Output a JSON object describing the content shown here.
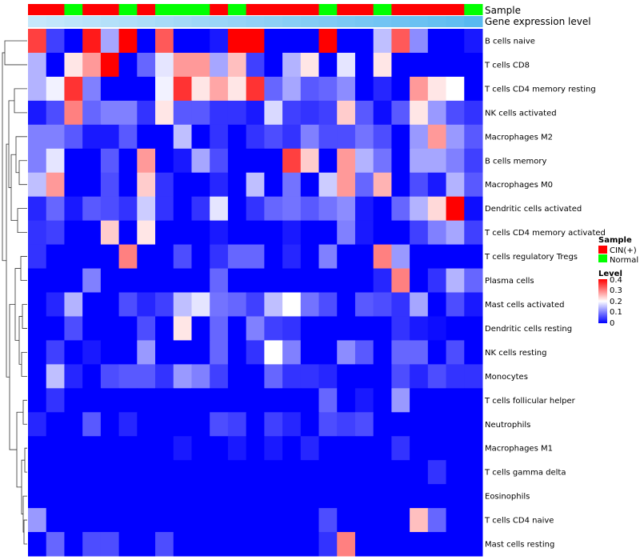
{
  "chart_data": {
    "type": "heatmap",
    "annotation_tracks": [
      {
        "name": "Sample"
      },
      {
        "name": "Gene expression level"
      }
    ],
    "sample_groups": [
      "C",
      "C",
      "N",
      "C",
      "C",
      "N",
      "C",
      "N",
      "N",
      "N",
      "C",
      "N",
      "C",
      "C",
      "C",
      "C",
      "N",
      "C",
      "C",
      "N",
      "C",
      "C",
      "C",
      "C",
      "N"
    ],
    "expression_level": [
      0.0,
      0.04,
      0.08,
      0.12,
      0.16,
      0.2,
      0.24,
      0.28,
      0.32,
      0.36,
      0.4,
      0.44,
      0.48,
      0.52,
      0.56,
      0.6,
      0.64,
      0.68,
      0.72,
      0.76,
      0.8,
      0.84,
      0.88,
      0.92,
      1.0
    ],
    "rows": [
      "B cells naive",
      "T cells CD8",
      "T cells CD4 memory resting",
      "NK cells activated",
      "Macrophages M2",
      "B cells memory",
      "Macrophages M0",
      "Dendritic cells activated",
      "T cells CD4 memory activated",
      "T cells regulatory  Tregs",
      "Plasma cells",
      "Mast cells activated",
      "Dendritic cells resting",
      "NK cells resting",
      "Monocytes",
      "T cells follicular helper",
      "Neutrophils",
      "Macrophages M1",
      "T cells gamma delta",
      "Eosinophils",
      "T cells CD4 naive",
      "Mast cells resting"
    ],
    "values": [
      [
        0.35,
        0.05,
        0,
        0.38,
        0.13,
        0.4,
        0,
        0.33,
        0,
        0,
        0.02,
        0.4,
        0.4,
        0,
        0,
        0,
        0.4,
        0,
        0,
        0.15,
        0.33,
        0.11,
        0,
        0,
        0.02
      ],
      [
        0.14,
        0,
        0.22,
        0.28,
        0.4,
        0,
        0.08,
        0.18,
        0.28,
        0.28,
        0.13,
        0.25,
        0.05,
        0,
        0.14,
        0.22,
        0,
        0.18,
        0,
        0.22,
        0,
        0,
        0,
        0,
        0
      ],
      [
        0.14,
        0.19,
        0.36,
        0.1,
        0,
        0,
        0,
        0.19,
        0.36,
        0.22,
        0.27,
        0.22,
        0.36,
        0.08,
        0.13,
        0.07,
        0.08,
        0.11,
        0,
        0.03,
        0,
        0.28,
        0.22,
        0.2,
        0
      ],
      [
        0.02,
        0.06,
        0.3,
        0.08,
        0.1,
        0.1,
        0.04,
        0.22,
        0.07,
        0.07,
        0.04,
        0.04,
        0.02,
        0.17,
        0.05,
        0.04,
        0.05,
        0.24,
        0.07,
        0.01,
        0.07,
        0.22,
        0.12,
        0.06,
        0.04
      ],
      [
        0.1,
        0.1,
        0.07,
        0.02,
        0.02,
        0.07,
        0,
        0,
        0.15,
        0,
        0.04,
        0,
        0.04,
        0.06,
        0.04,
        0.1,
        0.06,
        0.06,
        0.09,
        0.06,
        0,
        0.12,
        0.28,
        0.12,
        0.07
      ],
      [
        0.1,
        0.18,
        0,
        0,
        0.07,
        0,
        0.28,
        0,
        0.02,
        0.13,
        0.06,
        0,
        0,
        0,
        0.35,
        0.24,
        0,
        0.28,
        0.14,
        0.09,
        0,
        0.13,
        0.13,
        0.1,
        0.05
      ],
      [
        0.15,
        0.28,
        0,
        0,
        0.06,
        0,
        0.24,
        0.04,
        0,
        0,
        0.03,
        0,
        0.15,
        0,
        0.09,
        0,
        0.16,
        0.28,
        0.08,
        0.26,
        0,
        0.06,
        0.02,
        0.14,
        0.07
      ],
      [
        0.03,
        0.08,
        0.02,
        0.07,
        0.06,
        0.04,
        0.16,
        0.04,
        0,
        0.04,
        0.18,
        0,
        0.04,
        0.08,
        0.09,
        0.07,
        0.09,
        0.11,
        0.02,
        0,
        0.08,
        0.14,
        0.23,
        0.4,
        0.01
      ],
      [
        0.04,
        0.05,
        0,
        0,
        0.24,
        0,
        0.22,
        0,
        0,
        0,
        0.02,
        0,
        0,
        0,
        0.02,
        0,
        0,
        0.1,
        0.02,
        0,
        0,
        0.05,
        0.1,
        0.13,
        0.05
      ],
      [
        0.04,
        0,
        0,
        0,
        0,
        0.3,
        0,
        0,
        0.06,
        0,
        0.04,
        0.08,
        0.08,
        0,
        0.03,
        0,
        0.1,
        0,
        0,
        0.3,
        0.12,
        0,
        0,
        0,
        0
      ],
      [
        0,
        0,
        0,
        0.1,
        0,
        0,
        0,
        0,
        0,
        0,
        0.08,
        0,
        0,
        0,
        0,
        0,
        0,
        0,
        0,
        0.03,
        0.3,
        0,
        0.04,
        0.14,
        0.08
      ],
      [
        0,
        0.03,
        0.14,
        0,
        0,
        0.06,
        0.03,
        0.05,
        0.15,
        0.18,
        0.09,
        0.08,
        0.05,
        0.15,
        0.2,
        0.09,
        0.06,
        0,
        0.07,
        0.06,
        0.04,
        0.13,
        0,
        0.06,
        0.02
      ],
      [
        0,
        0,
        0.06,
        0,
        0,
        0,
        0.06,
        0,
        0.22,
        0,
        0.08,
        0,
        0.1,
        0.05,
        0.04,
        0,
        0,
        0,
        0,
        0,
        0.04,
        0.02,
        0.01,
        0,
        0
      ],
      [
        0,
        0.05,
        0,
        0.02,
        0,
        0,
        0.12,
        0,
        0,
        0,
        0.08,
        0,
        0.04,
        0.2,
        0.1,
        0,
        0,
        0.11,
        0.07,
        0,
        0.08,
        0.08,
        0,
        0.06,
        0
      ],
      [
        0,
        0.15,
        0.03,
        0,
        0.06,
        0.07,
        0.07,
        0.04,
        0.12,
        0.1,
        0.05,
        0,
        0,
        0.08,
        0.04,
        0.04,
        0.03,
        0,
        0,
        0,
        0.06,
        0.03,
        0.06,
        0.04,
        0.04
      ],
      [
        0,
        0.04,
        0,
        0,
        0,
        0,
        0,
        0,
        0,
        0,
        0,
        0,
        0,
        0,
        0,
        0,
        0.08,
        0,
        0.02,
        0,
        0.12,
        0,
        0,
        0,
        0
      ],
      [
        0.03,
        0,
        0,
        0.07,
        0,
        0.03,
        0,
        0,
        0,
        0,
        0.06,
        0.05,
        0,
        0.05,
        0.03,
        0,
        0.06,
        0.05,
        0.06,
        0,
        0,
        0,
        0,
        0,
        0
      ],
      [
        0,
        0,
        0,
        0,
        0,
        0,
        0,
        0,
        0.02,
        0,
        0,
        0.02,
        0,
        0.02,
        0,
        0.03,
        0,
        0,
        0,
        0,
        0.04,
        0,
        0,
        0,
        0
      ],
      [
        0,
        0,
        0,
        0,
        0,
        0,
        0,
        0,
        0,
        0,
        0,
        0,
        0,
        0,
        0,
        0,
        0,
        0,
        0,
        0,
        0,
        0,
        0.04,
        0,
        0
      ],
      [
        0,
        0,
        0,
        0,
        0,
        0,
        0,
        0,
        0,
        0,
        0,
        0,
        0,
        0,
        0,
        0,
        0,
        0,
        0,
        0,
        0,
        0,
        0,
        0,
        0
      ],
      [
        0.12,
        0,
        0,
        0,
        0,
        0,
        0,
        0,
        0,
        0,
        0,
        0,
        0,
        0,
        0,
        0,
        0.06,
        0,
        0,
        0,
        0,
        0.25,
        0.08,
        0,
        0
      ],
      [
        0,
        0.08,
        0,
        0.06,
        0.06,
        0,
        0,
        0.06,
        0,
        0,
        0,
        0,
        0,
        0,
        0,
        0,
        0.04,
        0.3,
        0,
        0,
        0,
        0,
        0,
        0,
        0
      ]
    ],
    "legend": {
      "sample_title": "Sample",
      "sample_entries": [
        {
          "label": "CIN(+)",
          "color": "#ff0000"
        },
        {
          "label": "Normal",
          "color": "#00ff00"
        }
      ],
      "level_title": "Level",
      "level_ticks": [
        "0.4",
        "0.3",
        "0.2",
        "0.1",
        "0"
      ],
      "level_range": [
        0,
        0.4
      ]
    },
    "colors": {
      "low": "#0000ff",
      "mid": "#ffffff",
      "high": "#ff0000",
      "expr_low": "#c6e8fb",
      "expr_high": "#58b9f0"
    }
  }
}
